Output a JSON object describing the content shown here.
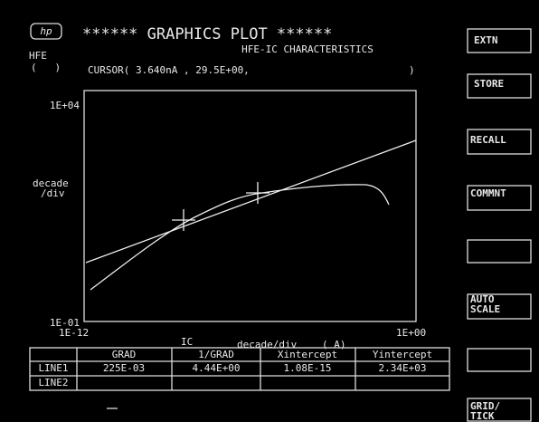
{
  "header": {
    "logo": "hp",
    "title": "****** GRAPHICS PLOT ******",
    "subtitle": "HFE-IC CHARACTERISTICS"
  },
  "cursor": {
    "y_name": "HFE",
    "y_unit": "(   )",
    "readout": "CURSOR( 3.640nA , 29.5E+00,",
    "close": ")"
  },
  "plot": {
    "y_top": "1E+04",
    "y_bottom": "1E-01",
    "y_scale": [
      "decade",
      "/div"
    ],
    "x_left": "1E-12",
    "x_right": "1E+00",
    "x_name": "IC",
    "x_scale": "decade/div",
    "x_unit": "( A)"
  },
  "table": {
    "columns": [
      "GRAD",
      "1/GRAD",
      "Xintercept",
      "Yintercept"
    ],
    "rows": [
      [
        "LINE1",
        "225E-03",
        "4.44E+00",
        "1.08E-15",
        "2.34E+03"
      ],
      [
        "LINE2"
      ]
    ]
  },
  "softkeys": [
    [
      "EXTN"
    ],
    [
      "STORE"
    ],
    [
      "RECALL"
    ],
    [
      "COMMNT"
    ],
    [
      "AUTO",
      "SCALE"
    ],
    [
      "GRID/",
      "TICK"
    ]
  ]
}
